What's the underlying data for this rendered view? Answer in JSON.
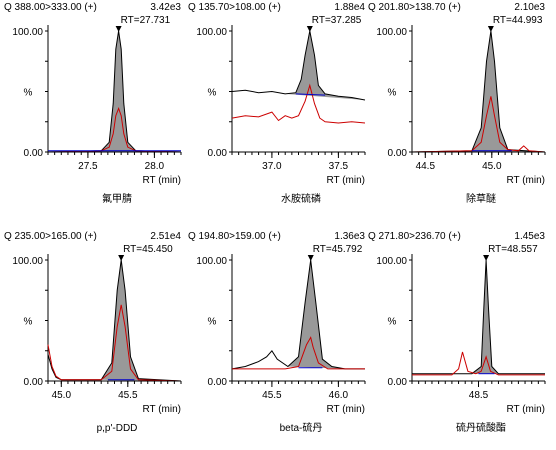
{
  "chart_data": [
    {
      "type": "line",
      "title": "Q 388.00>333.00 (+)",
      "intensity": "3.42e3",
      "peak_label": "RT=27.731",
      "compound": "氟甲腈",
      "xlabel": "RT (min)",
      "ylabel": "%",
      "ytick_labels": [
        "100.00",
        "0.00"
      ],
      "x_ticks": [
        27.5,
        28.0
      ],
      "x_tick_labels": [
        "27.5",
        "28.0"
      ],
      "xlim": [
        27.2,
        28.2
      ],
      "ylim": [
        0,
        100
      ],
      "series": [
        {
          "color": "#000000",
          "fill": "#999999",
          "x": [
            27.2,
            27.6,
            27.66,
            27.69,
            27.71,
            27.731,
            27.75,
            27.77,
            27.8,
            27.86,
            28.2
          ],
          "y": [
            0,
            1,
            8,
            40,
            85,
            100,
            85,
            40,
            8,
            1,
            0
          ]
        },
        {
          "color": "#cc0000",
          "x": [
            27.2,
            27.6,
            27.66,
            27.69,
            27.71,
            27.731,
            27.75,
            27.77,
            27.8,
            27.86,
            28.2
          ],
          "y": [
            0,
            1,
            4,
            15,
            30,
            36,
            30,
            15,
            4,
            1,
            0
          ]
        },
        {
          "color": "#0000cc",
          "x": [
            27.2,
            28.2
          ],
          "y": [
            1,
            1
          ]
        }
      ]
    },
    {
      "type": "line",
      "title": "Q 135.70>108.00 (+)",
      "intensity": "1.88e4",
      "peak_label": "RT=37.285",
      "compound": "水胺硫磷",
      "xlabel": "RT (min)",
      "ylabel": "%",
      "ytick_labels": [
        "100.00",
        "0.00"
      ],
      "x_ticks": [
        37.0,
        37.5
      ],
      "x_tick_labels": [
        "37.0",
        "37.5"
      ],
      "xlim": [
        36.7,
        37.7
      ],
      "ylim": [
        0,
        100
      ],
      "series": [
        {
          "color": "#000000",
          "fill": "#999999",
          "x": [
            36.7,
            36.8,
            36.9,
            37.0,
            37.1,
            37.18,
            37.22,
            37.25,
            37.285,
            37.32,
            37.35,
            37.4,
            37.5,
            37.6,
            37.7
          ],
          "y": [
            50,
            51,
            49,
            50,
            48,
            49,
            60,
            80,
            100,
            80,
            55,
            48,
            46,
            45,
            43
          ]
        },
        {
          "color": "#cc0000",
          "x": [
            36.7,
            36.8,
            36.9,
            37.0,
            37.05,
            37.1,
            37.15,
            37.2,
            37.25,
            37.285,
            37.32,
            37.36,
            37.4,
            37.5,
            37.6,
            37.7
          ],
          "y": [
            28,
            30,
            29,
            33,
            26,
            30,
            28,
            30,
            42,
            55,
            40,
            28,
            25,
            24,
            25,
            24
          ]
        },
        {
          "color": "#0000cc",
          "x": [
            37.18,
            37.4
          ],
          "y": [
            48,
            47
          ]
        }
      ]
    },
    {
      "type": "line",
      "title": "Q 201.80>138.70 (+)",
      "intensity": "2.10e3",
      "peak_label": "RT=44.993",
      "compound": "除草醚",
      "xlabel": "RT (min)",
      "ylabel": "%",
      "ytick_labels": [
        "100.00",
        "0.00"
      ],
      "x_ticks": [
        44.5,
        45.0
      ],
      "x_tick_labels": [
        "44.5",
        "45.0"
      ],
      "xlim": [
        44.4,
        45.4
      ],
      "ylim": [
        0,
        100
      ],
      "series": [
        {
          "color": "#000000",
          "fill": "#999999",
          "x": [
            44.4,
            44.85,
            44.92,
            44.96,
            44.993,
            45.02,
            45.06,
            45.12,
            45.4
          ],
          "y": [
            0,
            1,
            20,
            75,
            100,
            75,
            20,
            2,
            0
          ]
        },
        {
          "color": "#cc0000",
          "x": [
            44.4,
            44.85,
            44.92,
            44.96,
            44.993,
            45.02,
            45.06,
            45.12,
            45.2,
            45.24,
            45.28,
            45.4
          ],
          "y": [
            0,
            1,
            8,
            30,
            46,
            30,
            8,
            2,
            1,
            5,
            1,
            0
          ]
        },
        {
          "color": "#0000cc",
          "x": [
            44.85,
            45.15
          ],
          "y": [
            1,
            1
          ]
        }
      ]
    },
    {
      "type": "line",
      "title": "Q 235.00>165.00 (+)",
      "intensity": "2.51e4",
      "peak_label": "RT=45.450",
      "compound": "p,p'-DDD",
      "xlabel": "RT (min)",
      "ylabel": "%",
      "ytick_labels": [
        "100.00",
        "0.00"
      ],
      "x_ticks": [
        45.0,
        45.5
      ],
      "x_tick_labels": [
        "45.0",
        "45.5"
      ],
      "xlim": [
        44.9,
        45.9
      ],
      "ylim": [
        0,
        100
      ],
      "series": [
        {
          "color": "#000000",
          "fill": "#999999",
          "x": [
            44.9,
            44.93,
            44.96,
            45.0,
            45.3,
            45.38,
            45.42,
            45.45,
            45.48,
            45.52,
            45.58,
            45.9
          ],
          "y": [
            22,
            10,
            3,
            1,
            1,
            15,
            75,
            100,
            75,
            20,
            2,
            0
          ]
        },
        {
          "color": "#cc0000",
          "x": [
            44.9,
            44.93,
            44.96,
            45.0,
            45.3,
            45.38,
            45.42,
            45.45,
            45.48,
            45.52,
            45.58,
            45.9
          ],
          "y": [
            30,
            12,
            4,
            1,
            1,
            8,
            45,
            63,
            45,
            10,
            1,
            0
          ]
        },
        {
          "color": "#0000cc",
          "x": [
            45.35,
            45.55
          ],
          "y": [
            1,
            1
          ]
        }
      ]
    },
    {
      "type": "line",
      "title": "Q 194.80>159.00 (+)",
      "intensity": "1.36e3",
      "peak_label": "RT=45.792",
      "compound": "beta-硫丹",
      "xlabel": "RT (min)",
      "ylabel": "%",
      "ytick_labels": [
        "100.00",
        "0.00"
      ],
      "x_ticks": [
        45.5,
        46.0
      ],
      "x_tick_labels": [
        "45.5",
        "46.0"
      ],
      "xlim": [
        45.2,
        46.2
      ],
      "ylim": [
        0,
        100
      ],
      "series": [
        {
          "color": "#000000",
          "fill": "#999999",
          "x": [
            45.2,
            45.3,
            45.4,
            45.46,
            45.5,
            45.54,
            45.62,
            45.7,
            45.75,
            45.792,
            45.83,
            45.88,
            45.95,
            46.05,
            46.2
          ],
          "y": [
            10,
            12,
            16,
            20,
            25,
            18,
            12,
            20,
            65,
            100,
            65,
            18,
            12,
            10,
            10
          ]
        },
        {
          "color": "#cc0000",
          "x": [
            45.2,
            45.6,
            45.7,
            45.76,
            45.792,
            45.81,
            45.85,
            45.92,
            46.2
          ],
          "y": [
            10,
            10,
            12,
            30,
            36,
            28,
            15,
            10,
            10
          ]
        },
        {
          "color": "#0000cc",
          "x": [
            45.7,
            45.88
          ],
          "y": [
            11,
            11
          ]
        }
      ]
    },
    {
      "type": "line",
      "title": "Q 271.80>236.70 (+)",
      "intensity": "1.45e3",
      "peak_label": "RT=48.557",
      "compound": "硫丹硫酸酯",
      "xlabel": "RT (min)",
      "ylabel": "%",
      "ytick_labels": [
        "100.00",
        "0.00"
      ],
      "x_ticks": [
        48.5
      ],
      "x_tick_labels": [
        "48.5"
      ],
      "xlim": [
        48.0,
        49.0
      ],
      "ylim": [
        0,
        100
      ],
      "series": [
        {
          "color": "#000000",
          "fill": "#999999",
          "x": [
            48.0,
            48.45,
            48.52,
            48.54,
            48.557,
            48.575,
            48.6,
            48.65,
            49.0
          ],
          "y": [
            6,
            6,
            12,
            60,
            100,
            60,
            12,
            6,
            6
          ]
        },
        {
          "color": "#cc0000",
          "x": [
            48.0,
            48.3,
            48.35,
            48.38,
            48.42,
            48.48,
            48.52,
            48.557,
            48.59,
            48.65,
            49.0
          ],
          "y": [
            5,
            5,
            10,
            24,
            8,
            6,
            8,
            20,
            8,
            5,
            5
          ]
        },
        {
          "color": "#0000cc",
          "x": [
            48.5,
            48.62
          ],
          "y": [
            6,
            6
          ]
        }
      ]
    }
  ]
}
